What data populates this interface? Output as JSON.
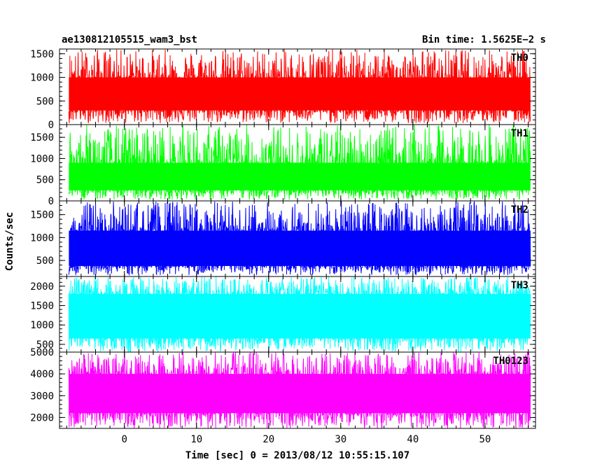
{
  "header": {
    "title": "ae130812105515_wam3_bst",
    "bin_time": "Bin time: 1.5625E−2 s"
  },
  "axes": {
    "ylabel": "Counts/sec",
    "xlabel": "Time [sec] 0 = 2013/08/12 10:55:15.107"
  },
  "chart_data": {
    "type": "line",
    "title": "ae130812105515_wam3_bst",
    "xlabel": "Time [sec] 0 = 2013/08/12 10:55:15.107",
    "ylabel": "Counts/sec",
    "xlim": [
      -9,
      57
    ],
    "x_range": [
      -7.7,
      56.3
    ],
    "x_ticks": [
      0,
      10,
      20,
      30,
      40,
      50
    ],
    "x_tick_labels": [
      "0",
      "10",
      "20",
      "30",
      "40",
      "50"
    ],
    "panels": [
      {
        "name": "TH0",
        "color": "#ff0000",
        "ylim": [
          0,
          1600
        ],
        "y_ticks": [
          0,
          500,
          1000,
          1500
        ],
        "y_tick_labels": [
          "0",
          "500",
          "1000",
          "1500"
        ],
        "typical_low": 300,
        "typical_high": 1000,
        "min": 30,
        "max": 1600
      },
      {
        "name": "TH1",
        "color": "#00ff00",
        "ylim": [
          0,
          1800
        ],
        "y_ticks": [
          0,
          500,
          1000,
          1500
        ],
        "y_tick_labels": [
          "0",
          "500",
          "1000",
          "1500"
        ],
        "typical_low": 250,
        "typical_high": 900,
        "min": 30,
        "max": 1800
      },
      {
        "name": "TH2",
        "color": "#0000ff",
        "ylim": [
          150,
          1800
        ],
        "y_ticks": [
          500,
          1000,
          1500
        ],
        "y_tick_labels": [
          "500",
          "1000",
          "1500"
        ],
        "typical_low": 380,
        "typical_high": 1150,
        "min": 180,
        "max": 1800
      },
      {
        "name": "TH3",
        "color": "#00ffff",
        "ylim": [
          300,
          2250
        ],
        "y_ticks": [
          500,
          1000,
          1500,
          2000
        ],
        "y_tick_labels": [
          "500",
          "1000",
          "1500",
          "2000"
        ],
        "typical_low": 650,
        "typical_high": 1800,
        "min": 300,
        "max": 2250
      },
      {
        "name": "TH0123",
        "color": "#ff00ff",
        "ylim": [
          1500,
          5000
        ],
        "y_ticks": [
          2000,
          3000,
          4000,
          5000
        ],
        "y_tick_labels": [
          "2000",
          "3000",
          "4000",
          "5000"
        ],
        "typical_low": 2200,
        "typical_high": 4000,
        "min": 1500,
        "max": 5000
      }
    ]
  }
}
